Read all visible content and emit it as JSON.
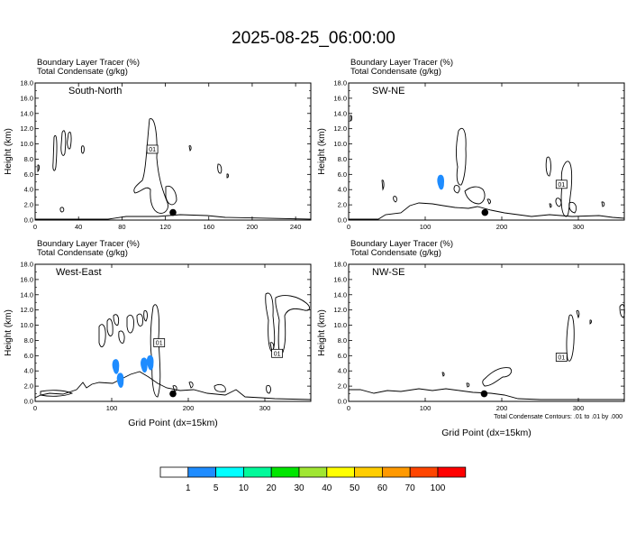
{
  "title": "2025-08-25_06:00:00",
  "common": {
    "header1": "Boundary Layer Tracer   (%)",
    "header2": "Total Condensate   (g/kg)",
    "ylabel": "Height (km)",
    "xlabel": "Grid Point (dx=15km)",
    "contour_note": "Total Condensate Contours: .01 to .01 by .000",
    "contour_label": "01"
  },
  "colorbar": {
    "colors": [
      "#ffffff",
      "#1e8cff",
      "#00ffff",
      "#00fa9a",
      "#00e600",
      "#a0e632",
      "#ffff00",
      "#ffcd00",
      "#ff9900",
      "#ff4500",
      "#ff0000"
    ],
    "labels": [
      "1",
      "5",
      "10",
      "20",
      "30",
      "40",
      "50",
      "60",
      "70",
      "100"
    ]
  },
  "chart_data": [
    {
      "type": "contour",
      "label": "South-North",
      "ylim": [
        0,
        18
      ],
      "yticks": [
        "0.0",
        "2.0",
        "4.0",
        "6.0",
        "8.0",
        "10.0",
        "12.0",
        "14.0",
        "16.0",
        "18.0"
      ],
      "xlim": [
        0,
        254
      ],
      "xticks": [
        0,
        40,
        80,
        120,
        160,
        200,
        240
      ],
      "marker": [
        127,
        1.0
      ],
      "contour_label_at": [
        108,
        9.3
      ],
      "blue": []
    },
    {
      "type": "contour",
      "label": "SW-NE",
      "ylim": [
        0,
        18
      ],
      "yticks": [
        "0.0",
        "2.0",
        "4.0",
        "6.0",
        "8.0",
        "10.0",
        "12.0",
        "14.0",
        "16.0",
        "18.0"
      ],
      "xlim": [
        0,
        360
      ],
      "xticks": [
        0,
        100,
        200,
        300
      ],
      "marker": [
        178,
        1.0
      ],
      "contour_label_at": [
        278,
        4.7
      ],
      "blue": [
        [
          121,
          5.0
        ]
      ]
    },
    {
      "type": "contour",
      "label": "West-East",
      "ylim": [
        0,
        18
      ],
      "yticks": [
        "0.0",
        "2.0",
        "4.0",
        "6.0",
        "8.0",
        "10.0",
        "12.0",
        "14.0",
        "16.0",
        "18.0"
      ],
      "xlim": [
        0,
        360
      ],
      "xticks": [
        0,
        100,
        200,
        300
      ],
      "marker": [
        180,
        1.0
      ],
      "contour_label_at": [
        162,
        7.7
      ],
      "contour_label_at_2": [
        316,
        6.3
      ],
      "blue": [
        [
          106,
          4.6
        ],
        [
          112,
          2.8
        ],
        [
          143,
          4.8
        ],
        [
          151,
          5.1
        ]
      ]
    },
    {
      "type": "contour",
      "label": "NW-SE",
      "ylim": [
        0,
        18
      ],
      "yticks": [
        "0.0",
        "2.0",
        "4.0",
        "6.0",
        "8.0",
        "10.0",
        "12.0",
        "14.0",
        "16.0",
        "18.0"
      ],
      "xlim": [
        0,
        360
      ],
      "xticks": [
        0,
        100,
        200,
        300
      ],
      "marker": [
        177,
        1.0
      ],
      "contour_label_at": [
        278,
        5.8
      ],
      "blue": []
    }
  ]
}
